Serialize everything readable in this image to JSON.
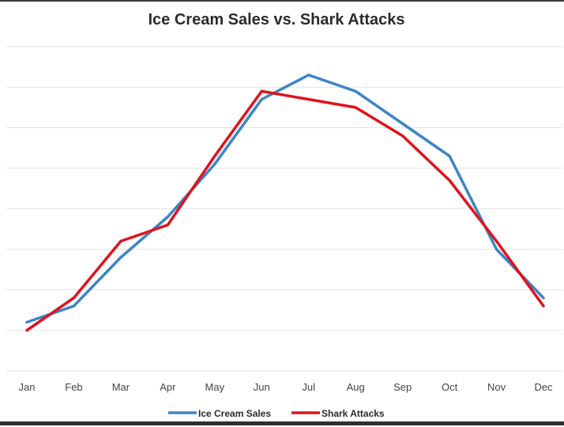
{
  "chart_data": {
    "type": "line",
    "title": "Ice Cream Sales vs. Shark Attacks",
    "xlabel": "",
    "ylabel": "",
    "categories": [
      "Jan",
      "Feb",
      "Mar",
      "Apr",
      "May",
      "Jun",
      "Jul",
      "Aug",
      "Sep",
      "Oct",
      "Nov",
      "Dec"
    ],
    "ylim": [
      0,
      8
    ],
    "grid": true,
    "y_tick_labels_shown": false,
    "legend_position": "bottom",
    "series": [
      {
        "name": "Ice Cream Sales",
        "color": "#3d85c6",
        "values": [
          1.2,
          1.6,
          2.8,
          3.8,
          5.1,
          6.7,
          7.3,
          6.9,
          6.1,
          5.3,
          3.0,
          1.8
        ]
      },
      {
        "name": "Shark Attacks",
        "color": "#e0121e",
        "values": [
          1.0,
          1.8,
          3.2,
          3.6,
          5.3,
          6.9,
          6.7,
          6.5,
          5.8,
          4.7,
          3.2,
          1.6
        ]
      }
    ]
  }
}
